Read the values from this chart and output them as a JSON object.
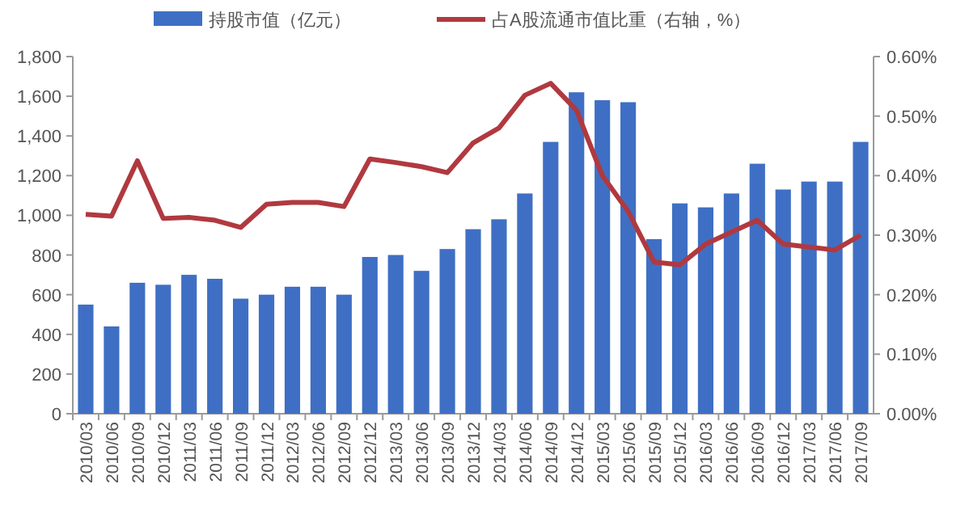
{
  "chart_data": {
    "type": "bar",
    "legend": "top",
    "categories": [
      "2010/03",
      "2010/06",
      "2010/09",
      "2010/12",
      "2011/03",
      "2011/06",
      "2011/09",
      "2011/12",
      "2012/03",
      "2012/06",
      "2012/09",
      "2012/12",
      "2013/03",
      "2013/06",
      "2013/09",
      "2013/12",
      "2014/03",
      "2014/06",
      "2014/09",
      "2014/12",
      "2015/03",
      "2015/06",
      "2015/09",
      "2015/12",
      "2016/03",
      "2016/06",
      "2016/09",
      "2016/12",
      "2017/03",
      "2017/06",
      "2017/09"
    ],
    "series": [
      {
        "name": "持股市值（亿元）",
        "color": "#3f6fc4",
        "values": [
          550,
          440,
          660,
          650,
          700,
          680,
          580,
          600,
          640,
          640,
          600,
          790,
          800,
          720,
          830,
          930,
          980,
          1110,
          1370,
          1620,
          1580,
          1570,
          880,
          1060,
          1040,
          1110,
          1260,
          1130,
          1170,
          1170,
          1370
        ]
      },
      {
        "name": "占A股流通市值比重（右轴，%）",
        "type": "line",
        "axis": "y2",
        "color": "#b0393f",
        "values": [
          0.335,
          0.332,
          0.425,
          0.328,
          0.33,
          0.325,
          0.313,
          0.352,
          0.355,
          0.355,
          0.348,
          0.428,
          0.422,
          0.415,
          0.405,
          0.455,
          0.48,
          0.535,
          0.555,
          0.51,
          0.4,
          0.34,
          0.255,
          0.25,
          0.285,
          0.305,
          0.325,
          0.285,
          0.28,
          0.275,
          0.3
        ]
      }
    ],
    "ylim": [
      0,
      1800
    ],
    "yticks": [
      0,
      {
        "value": 200,
        "label": "200"
      },
      400,
      600,
      800,
      {
        "value": 1000,
        "label": "1,000"
      },
      {
        "value": 1200,
        "label": "1,200"
      },
      {
        "value": 1400,
        "label": "1,400"
      },
      {
        "value": 1600,
        "label": "1,600"
      },
      {
        "value": 1800,
        "label": "1,800"
      }
    ],
    "y2lim": [
      0,
      0.6
    ],
    "y2ticks": [
      {
        "value": 0,
        "label": "0.00%"
      },
      {
        "value": 0.1,
        "label": "0.10%"
      },
      {
        "value": 0.2,
        "label": "0.20%"
      },
      {
        "value": 0.3,
        "label": "0.30%"
      },
      {
        "value": 0.4,
        "label": "0.40%"
      },
      {
        "value": 0.5,
        "label": "0.50%"
      },
      {
        "value": 0.6,
        "label": "0.60%"
      }
    ]
  }
}
